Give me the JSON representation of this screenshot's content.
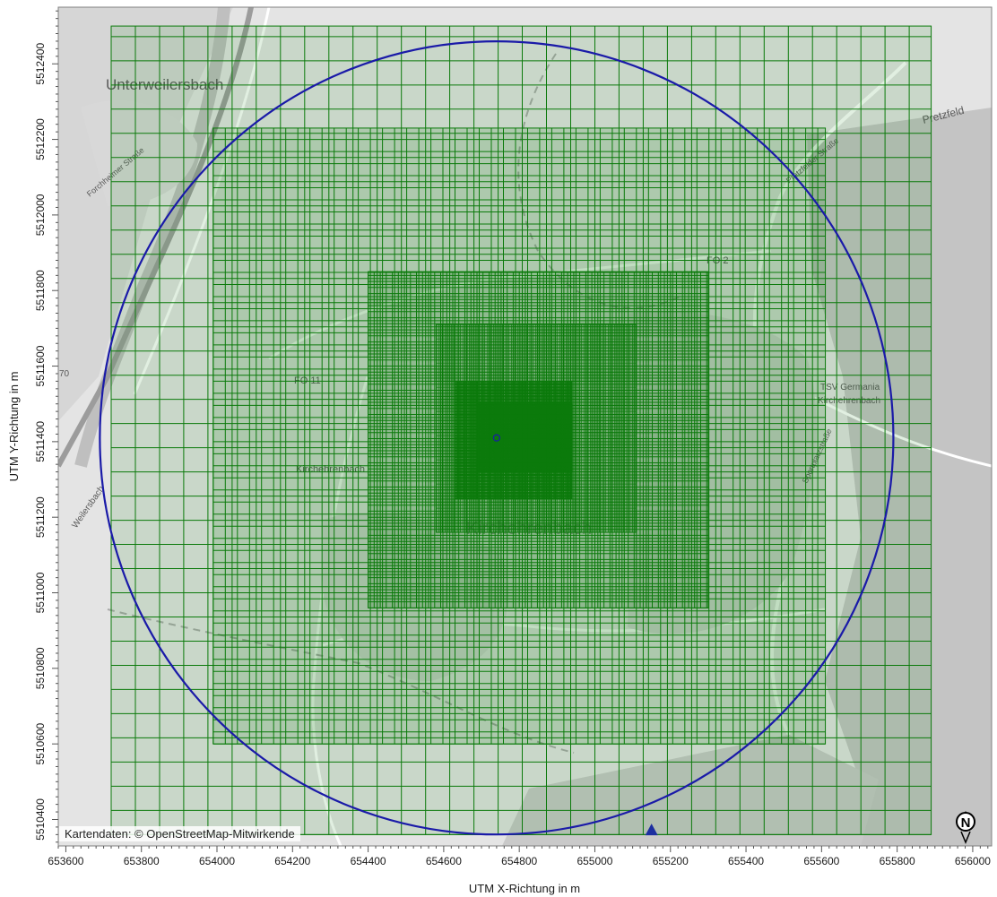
{
  "axes": {
    "x_title": "UTM X-Richtung in m",
    "y_title": "UTM Y-Richtung in m",
    "x_ticks": [
      "653600",
      "653800",
      "654000",
      "654200",
      "654400",
      "654600",
      "654800",
      "655000",
      "655200",
      "655400",
      "655600",
      "655800",
      "656000"
    ],
    "y_ticks": [
      "5512400",
      "5512200",
      "5512000",
      "5511800",
      "5511600",
      "5511400",
      "5511200",
      "5511000",
      "5510800",
      "5510600",
      "5510400"
    ]
  },
  "map": {
    "credit": "Kartendaten: © OpenStreetMap-Mitwirkende",
    "labels": {
      "unterweilersbach": "Unterweilersbach",
      "kirchehrenbach": "Kirchehrenbach",
      "kirchehrenbach_large": "Kirchehrenbach",
      "pretzfeld": "Pretzfeld",
      "fo11": "FO 11",
      "fo2": "FO 2",
      "tsv_1": "TSV Germania",
      "tsv_2": "Kirchehrenbach",
      "forchheimer": "Forchheimer Straße",
      "pretzfelder": "Pretzfelder Straße",
      "weilersbach": "Weilersbach",
      "sportplatzstrasse": "Sportplatzstraße",
      "road70": "70"
    }
  },
  "colors": {
    "grid": "#0b7a0b",
    "circle": "#1a1aa8",
    "source": "#1a1aa8",
    "receptor": "#1c2fa0",
    "map_bg": "#e4e4e4"
  },
  "icons": {
    "north_arrow": "north-arrow-icon"
  },
  "chart_data": {
    "type": "map",
    "x_range_m": [
      653580,
      656050
    ],
    "y_range_m": [
      5510330,
      5512550
    ],
    "grid_levels": [
      {
        "x": [
          653720,
          655890
        ],
        "y": [
          5510360,
          5512500
        ],
        "cell_m": 64
      },
      {
        "x": [
          653990,
          655610
        ],
        "y": [
          5510600,
          5512230
        ],
        "cell_m": 32
      },
      {
        "x": [
          654400,
          655300
        ],
        "y": [
          5510960,
          5511850
        ],
        "cell_m": 16
      },
      {
        "x": [
          654580,
          655110
        ],
        "y": [
          5511160,
          5511710
        ],
        "cell_m": 8
      },
      {
        "x": [
          654630,
          654940
        ],
        "y": [
          5511250,
          5511560
        ],
        "cell_m": 4
      },
      {
        "x": [
          654690,
          654940
        ],
        "y": [
          5511320,
          5511500
        ],
        "cell_m": 2
      }
    ],
    "source": {
      "x": 654740,
      "y": 5511410
    },
    "circle_radius_m": 1050,
    "receptor": {
      "x": 655150,
      "y": 5510370
    }
  }
}
